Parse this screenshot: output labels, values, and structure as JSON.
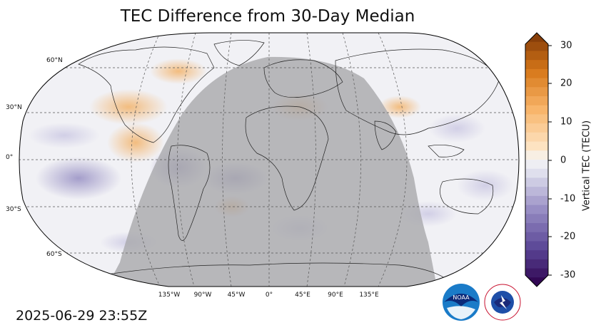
{
  "title": "TEC Difference from 30-Day Median",
  "timestamp": "2025-06-29 23:55Z",
  "lat_labels": [
    "60°N",
    "30°N",
    "0°",
    "30°S",
    "60°S"
  ],
  "lon_labels": [
    "135°W",
    "90°W",
    "45°W",
    "0°",
    "45°E",
    "90°E",
    "135°E"
  ],
  "colorbar": {
    "label": "Vertical TEC (TECU)",
    "ticks": [
      "30",
      "20",
      "10",
      "0",
      "-10",
      "-20",
      "-30"
    ],
    "min": -30,
    "max": 30,
    "colormap": "PuOr_r"
  },
  "logos": {
    "noaa": "NOAA",
    "nws": "NATIONAL WEATHER SERVICE"
  },
  "colors": {
    "night_shade": "#b4b4b4",
    "positive": "#f4b46a",
    "negative": "#9a93c4",
    "neutral": "#f1f1f4"
  }
}
